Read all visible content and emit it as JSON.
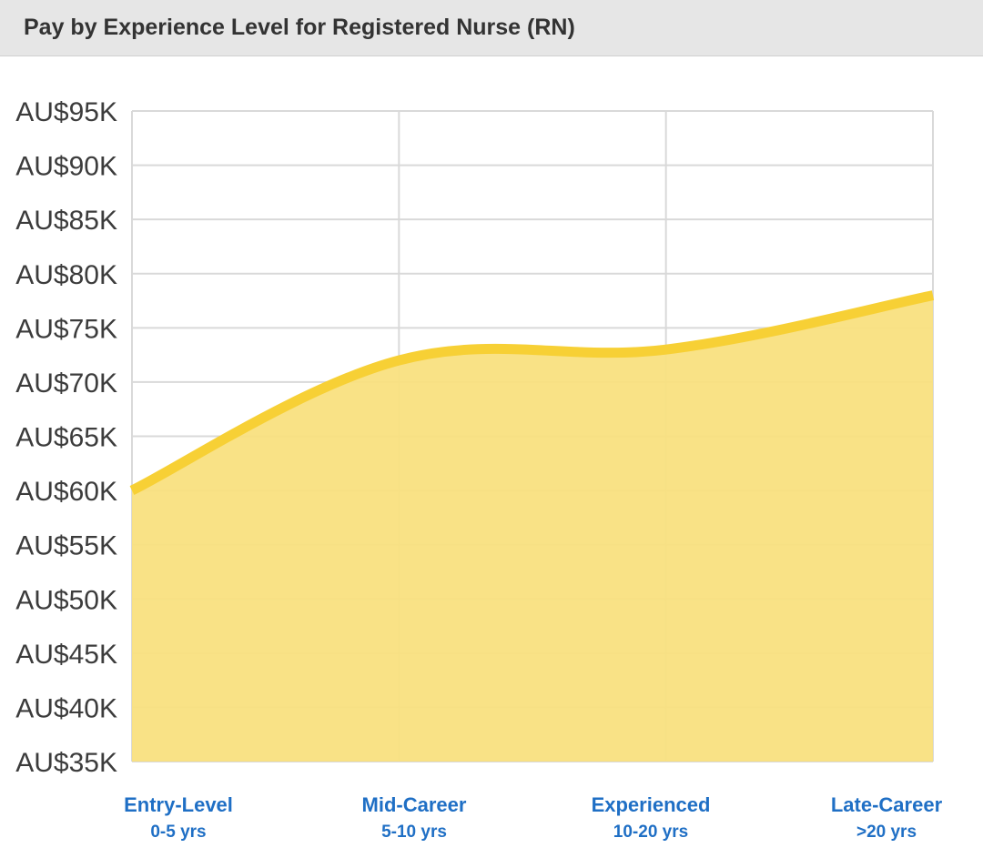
{
  "header": {
    "title": "Pay by Experience Level for Registered Nurse (RN)"
  },
  "chart_data": {
    "type": "area",
    "title": "Pay by Experience Level for Registered Nurse (RN)",
    "categories": [
      "Entry-Level",
      "Mid-Career",
      "Experienced",
      "Late-Career"
    ],
    "category_sublabels": [
      "0-5 yrs",
      "5-10 yrs",
      "10-20 yrs",
      ">20 yrs"
    ],
    "values": [
      60000,
      72000,
      73000,
      78000
    ],
    "ylim": [
      35000,
      95000
    ],
    "ytick_step": 5000,
    "ytick_labels": [
      "AU$35K",
      "AU$40K",
      "AU$45K",
      "AU$50K",
      "AU$55K",
      "AU$60K",
      "AU$65K",
      "AU$70K",
      "AU$75K",
      "AU$80K",
      "AU$85K",
      "AU$90K",
      "AU$95K"
    ],
    "grid": true,
    "colors": {
      "line": "#f7d035",
      "fill": "#f9e07f",
      "grid": "#d9d9d9",
      "category_label": "#1f6fc5"
    }
  }
}
